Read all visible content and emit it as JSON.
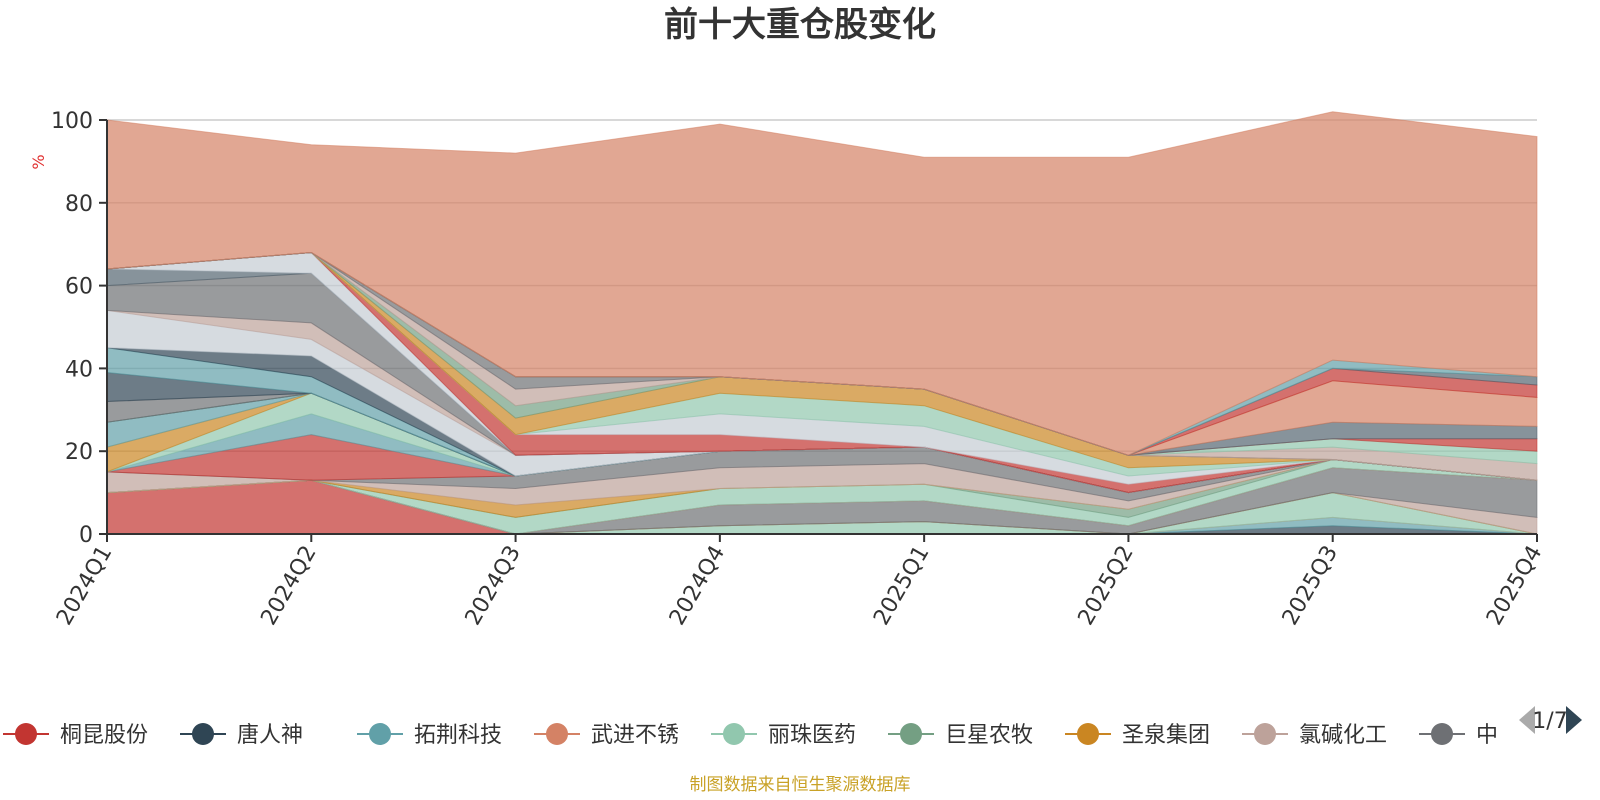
{
  "chart_data": {
    "type": "area",
    "title": "前十大重仓股变化",
    "ylabel": "%",
    "ylim": [
      0,
      100
    ],
    "y_ticks": [
      "0",
      "20",
      "40",
      "60",
      "80",
      "100"
    ],
    "categories": [
      "2024Q1",
      "2024Q2",
      "2024Q3",
      "2024Q4",
      "2025Q1",
      "2025Q2",
      "2025Q3",
      "2025Q4"
    ],
    "stacked": true,
    "grid": true,
    "legend_position": "bottom",
    "series": [
      {
        "name": "桐昆股份",
        "color": "#c23531",
        "values": [
          10,
          13,
          0,
          0,
          0,
          0,
          0,
          0
        ]
      },
      {
        "name": "唐人神",
        "color": "#2f4554",
        "values": [
          0,
          0,
          0,
          0,
          0,
          0,
          2,
          0
        ]
      },
      {
        "name": "拓荆科技",
        "color": "#61a0a8",
        "values": [
          0,
          0,
          0,
          0,
          0,
          0,
          2,
          0
        ]
      },
      {
        "name": "武进不锈",
        "color": "#d48265",
        "values": [
          0,
          0,
          0,
          0,
          0,
          0,
          0,
          0
        ]
      },
      {
        "name": "丽珠医药",
        "color": "#91c7ae",
        "values": [
          0,
          0,
          0,
          2,
          3,
          0,
          6,
          0
        ]
      },
      {
        "name": "巨星农牧",
        "color": "#749f83",
        "values": [
          0,
          0,
          0,
          0,
          0,
          0,
          0,
          0
        ]
      },
      {
        "name": "圣泉集团",
        "color": "#ca8622",
        "values": [
          0,
          0,
          0,
          0,
          0,
          0,
          0,
          0
        ]
      },
      {
        "name": "氯碱化工",
        "color": "#bda29a",
        "values": [
          0,
          0,
          0,
          0,
          0,
          0,
          0,
          4
        ]
      },
      {
        "name": "中",
        "color": "#6e7074",
        "values": [
          0,
          0,
          0,
          5,
          5,
          2,
          6,
          9
        ]
      },
      {
        "name": "",
        "color": "#546570",
        "values": [
          0,
          0,
          0,
          0,
          0,
          0,
          0,
          0
        ]
      },
      {
        "name": "",
        "color": "#c4ccd3",
        "values": [
          0,
          0,
          0,
          0,
          0,
          0,
          0,
          0
        ]
      },
      {
        "name": "",
        "color": "#c23531",
        "values": [
          0,
          0,
          0,
          0,
          0,
          0,
          0,
          0
        ]
      },
      {
        "name": "",
        "color": "#91c7ae",
        "values": [
          0,
          0,
          4,
          4,
          4,
          2,
          2,
          0
        ]
      },
      {
        "name": "",
        "color": "#749f83",
        "values": [
          0,
          0,
          0,
          0,
          0,
          2,
          0,
          0
        ]
      },
      {
        "name": "",
        "color": "#ca8622",
        "values": [
          0,
          0,
          3,
          0,
          0,
          0,
          0,
          0
        ]
      },
      {
        "name": "",
        "color": "#bda29a",
        "values": [
          5,
          0,
          4,
          5,
          5,
          2,
          0,
          0
        ]
      },
      {
        "name": "",
        "color": "#6e7074",
        "values": [
          0,
          0,
          3,
          4,
          4,
          2,
          0,
          0
        ]
      },
      {
        "name": "",
        "color": "#c23531",
        "values": [
          0,
          11,
          0,
          0,
          0,
          0,
          0,
          0
        ]
      },
      {
        "name": "",
        "color": "#61a0a8",
        "values": [
          0,
          5,
          0,
          0,
          0,
          0,
          0,
          0
        ]
      },
      {
        "name": "",
        "color": "#91c7ae",
        "values": [
          0,
          5,
          0,
          0,
          0,
          0,
          0,
          0
        ]
      },
      {
        "name": "",
        "color": "#ca8622",
        "values": [
          6,
          0,
          0,
          0,
          0,
          0,
          0,
          0
        ]
      },
      {
        "name": "",
        "color": "#61a0a8",
        "values": [
          6,
          0,
          0,
          0,
          0,
          0,
          0,
          0
        ]
      },
      {
        "name": "",
        "color": "#2f4554",
        "values": [
          0,
          0,
          0,
          0,
          0,
          0,
          0,
          0
        ]
      },
      {
        "name": "",
        "color": "#749f83",
        "values": [
          0,
          0,
          0,
          0,
          0,
          0,
          0,
          0
        ]
      },
      {
        "name": "",
        "color": "#6e7074",
        "values": [
          5,
          0,
          0,
          0,
          0,
          0,
          0,
          0
        ]
      },
      {
        "name": "",
        "color": "#2f4554",
        "values": [
          7,
          0,
          0,
          0,
          0,
          0,
          0,
          0
        ]
      },
      {
        "name": "",
        "color": "#61a0a8",
        "values": [
          6,
          4,
          0,
          0,
          0,
          0,
          0,
          0
        ]
      },
      {
        "name": "",
        "color": "#2f4554",
        "values": [
          0,
          5,
          0,
          0,
          0,
          0,
          0,
          0
        ]
      },
      {
        "name": "",
        "color": "#c4ccd3",
        "values": [
          9,
          4,
          5,
          0,
          0,
          0,
          0,
          0
        ]
      },
      {
        "name": "",
        "color": "#bda29a",
        "values": [
          0,
          4,
          0,
          0,
          0,
          0,
          0,
          0
        ]
      },
      {
        "name": "",
        "color": "#6e7074",
        "values": [
          6,
          12,
          0,
          0,
          0,
          0,
          0,
          0
        ]
      },
      {
        "name": "",
        "color": "#546570",
        "values": [
          4,
          0,
          0,
          0,
          0,
          0,
          0,
          0
        ]
      },
      {
        "name": "",
        "color": "#c4ccd3",
        "values": [
          0,
          5,
          0,
          0,
          0,
          0,
          0,
          0
        ]
      },
      {
        "name": "",
        "color": "#c23531",
        "values": [
          0,
          0,
          5,
          4,
          0,
          2,
          0,
          0
        ]
      },
      {
        "name": "",
        "color": "#c4ccd3",
        "values": [
          0,
          0,
          0,
          5,
          5,
          2,
          0,
          0
        ]
      },
      {
        "name": "",
        "color": "#91c7ae",
        "values": [
          0,
          0,
          0,
          5,
          5,
          2,
          0,
          0
        ]
      },
      {
        "name": "",
        "color": "#ca8622",
        "values": [
          0,
          0,
          4,
          4,
          4,
          3,
          0,
          0
        ]
      },
      {
        "name": "",
        "color": "#749f83",
        "values": [
          0,
          0,
          3,
          0,
          0,
          0,
          0,
          0
        ]
      },
      {
        "name": "",
        "color": "#bda29a",
        "values": [
          0,
          0,
          4,
          0,
          0,
          0,
          0,
          0
        ]
      },
      {
        "name": "",
        "color": "#6e7074",
        "values": [
          0,
          0,
          3,
          0,
          0,
          0,
          0,
          0
        ]
      },
      {
        "name": "",
        "color": "#bda29a",
        "values": [
          0,
          0,
          0,
          0,
          0,
          0,
          3,
          4
        ]
      },
      {
        "name": "",
        "color": "#91c7ae",
        "values": [
          0,
          0,
          0,
          0,
          0,
          0,
          2,
          3
        ]
      },
      {
        "name": "",
        "color": "#c23531",
        "values": [
          0,
          0,
          0,
          0,
          0,
          0,
          0,
          3
        ]
      },
      {
        "name": "",
        "color": "#546570",
        "values": [
          0,
          0,
          0,
          0,
          0,
          0,
          4,
          3
        ]
      },
      {
        "name": "",
        "color": "#d48265",
        "values": [
          0,
          0,
          0,
          0,
          0,
          0,
          10,
          7
        ]
      },
      {
        "name": "",
        "color": "#c23531",
        "values": [
          0,
          0,
          0,
          0,
          0,
          0,
          3,
          3
        ]
      },
      {
        "name": "",
        "color": "#546570",
        "values": [
          0,
          0,
          0,
          0,
          0,
          0,
          0,
          2
        ]
      },
      {
        "name": "",
        "color": "#61a0a8",
        "values": [
          0,
          0,
          0,
          0,
          0,
          0,
          2,
          0
        ]
      },
      {
        "name": "",
        "color": "#d48265",
        "values": [
          36,
          26,
          54,
          61,
          56,
          72,
          60,
          58
        ]
      }
    ]
  },
  "legend": {
    "items": [
      {
        "label": "桐昆股份",
        "color": "#c23531"
      },
      {
        "label": "唐人神",
        "color": "#2f4554"
      },
      {
        "label": "拓荆科技",
        "color": "#61a0a8"
      },
      {
        "label": "武进不锈",
        "color": "#d48265"
      },
      {
        "label": "丽珠医药",
        "color": "#91c7ae"
      },
      {
        "label": "巨星农牧",
        "color": "#749f83"
      },
      {
        "label": "圣泉集团",
        "color": "#ca8622"
      },
      {
        "label": "氯碱化工",
        "color": "#bda29a"
      },
      {
        "label": "中",
        "color": "#6e7074"
      }
    ],
    "page": "1/7",
    "prev_icon": "triangle-left-icon",
    "next_icon": "triangle-right-icon",
    "prev_color": "#aaaaaa",
    "next_color": "#2f4554"
  },
  "footer": {
    "source": "制图数据来自恒生聚源数据库"
  }
}
